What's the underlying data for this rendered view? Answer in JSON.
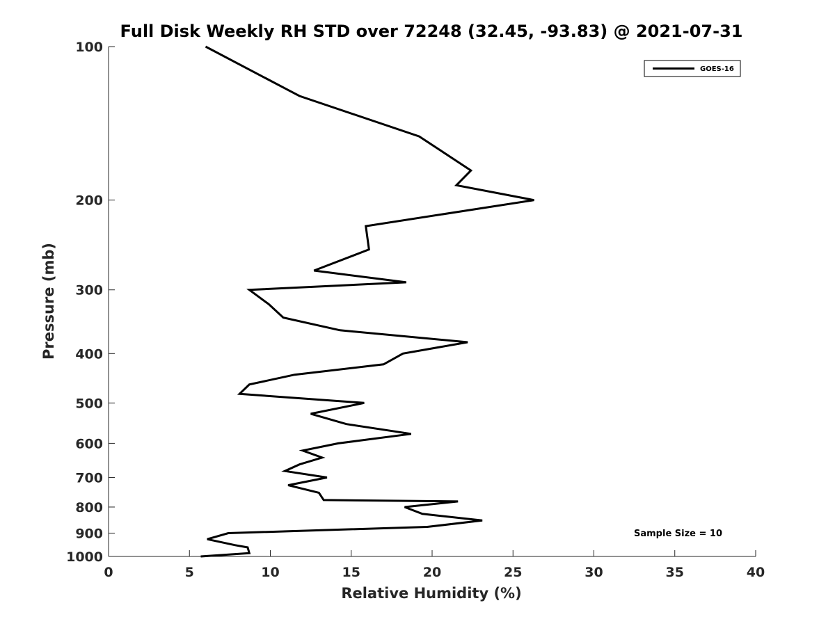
{
  "chart_data": {
    "type": "line",
    "title": "Full Disk Weekly RH STD over 72248 (32.45, -93.83) @ 2021-07-31",
    "xlabel": "Relative Humidity (%)",
    "ylabel": "Pressure (mb)",
    "xlim": [
      0,
      40
    ],
    "ylim": [
      100,
      1000
    ],
    "y_scale": "log",
    "y_reversed": true,
    "x_ticks": [
      0,
      5,
      10,
      15,
      20,
      25,
      30,
      35,
      40
    ],
    "y_ticks": [
      100,
      200,
      300,
      400,
      500,
      600,
      700,
      800,
      900,
      1000
    ],
    "grid": false,
    "legend_position": "top-right",
    "line_color": "#000000",
    "series": [
      {
        "name": "GOES-16",
        "points": [
          [
            6.0,
            100
          ],
          [
            11.8,
            125
          ],
          [
            19.2,
            150
          ],
          [
            22.4,
            175
          ],
          [
            21.5,
            187
          ],
          [
            26.3,
            200
          ],
          [
            15.9,
            225
          ],
          [
            16.1,
            250
          ],
          [
            12.7,
            275
          ],
          [
            18.4,
            290
          ],
          [
            8.7,
            300
          ],
          [
            9.9,
            320
          ],
          [
            10.8,
            340
          ],
          [
            14.3,
            360
          ],
          [
            22.2,
            380
          ],
          [
            18.2,
            400
          ],
          [
            17.0,
            420
          ],
          [
            11.5,
            440
          ],
          [
            8.7,
            460
          ],
          [
            8.1,
            480
          ],
          [
            15.8,
            500
          ],
          [
            12.5,
            525
          ],
          [
            14.7,
            550
          ],
          [
            18.7,
            575
          ],
          [
            14.2,
            600
          ],
          [
            12.0,
            620
          ],
          [
            13.2,
            640
          ],
          [
            11.8,
            660
          ],
          [
            10.9,
            680
          ],
          [
            13.5,
            700
          ],
          [
            11.1,
            725
          ],
          [
            13.0,
            750
          ],
          [
            13.3,
            775
          ],
          [
            21.6,
            780
          ],
          [
            18.3,
            800
          ],
          [
            19.4,
            825
          ],
          [
            23.1,
            850
          ],
          [
            19.7,
            875
          ],
          [
            7.4,
            900
          ],
          [
            6.1,
            925
          ],
          [
            7.8,
            950
          ],
          [
            8.6,
            960
          ],
          [
            8.7,
            985
          ],
          [
            5.7,
            1000
          ]
        ]
      }
    ],
    "annotations": [
      "Sample Size = 10"
    ]
  }
}
